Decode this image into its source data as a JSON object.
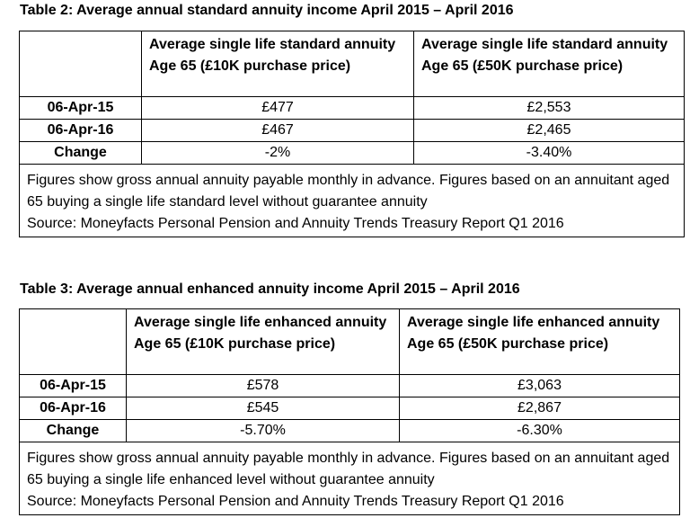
{
  "tables": [
    {
      "caption": "Table 2: Average annual standard annuity income April 2015 – April 2016",
      "col_headers": [
        "",
        "Average single life standard annuity Age 65 (£10K purchase price)",
        "Average single life standard annuity Age 65 (£50K purchase price)"
      ],
      "rows": [
        {
          "label": "06-Apr-15",
          "values": [
            "£477",
            "£2,553"
          ]
        },
        {
          "label": "06-Apr-16",
          "values": [
            "£467",
            "£2,465"
          ]
        },
        {
          "label": "Change",
          "values": [
            "-2%",
            "-3.40%"
          ]
        }
      ],
      "note": "Figures show gross annual annuity payable monthly in advance. Figures based on an annuitant aged 65 buying a single life standard level without guarantee annuity",
      "source": "Source: Moneyfacts Personal Pension and Annuity Trends Treasury Report Q1 2016"
    },
    {
      "caption": "Table 3: Average annual enhanced annuity income April 2015 – April 2016",
      "col_headers": [
        "",
        "Average single life enhanced annuity Age 65 (£10K purchase price)",
        "Average single life enhanced annuity Age 65 (£50K purchase price)"
      ],
      "rows": [
        {
          "label": "06-Apr-15",
          "values": [
            "£578",
            "£3,063"
          ]
        },
        {
          "label": "06-Apr-16",
          "values": [
            "£545",
            "£2,867"
          ]
        },
        {
          "label": "Change",
          "values": [
            "-5.70%",
            "-6.30%"
          ]
        }
      ],
      "note": "Figures show gross annual annuity payable monthly in advance. Figures based on an annuitant aged 65 buying a single life enhanced level without guarantee annuity",
      "source": "Source: Moneyfacts Personal Pension and Annuity Trends Treasury Report Q1 2016"
    }
  ]
}
